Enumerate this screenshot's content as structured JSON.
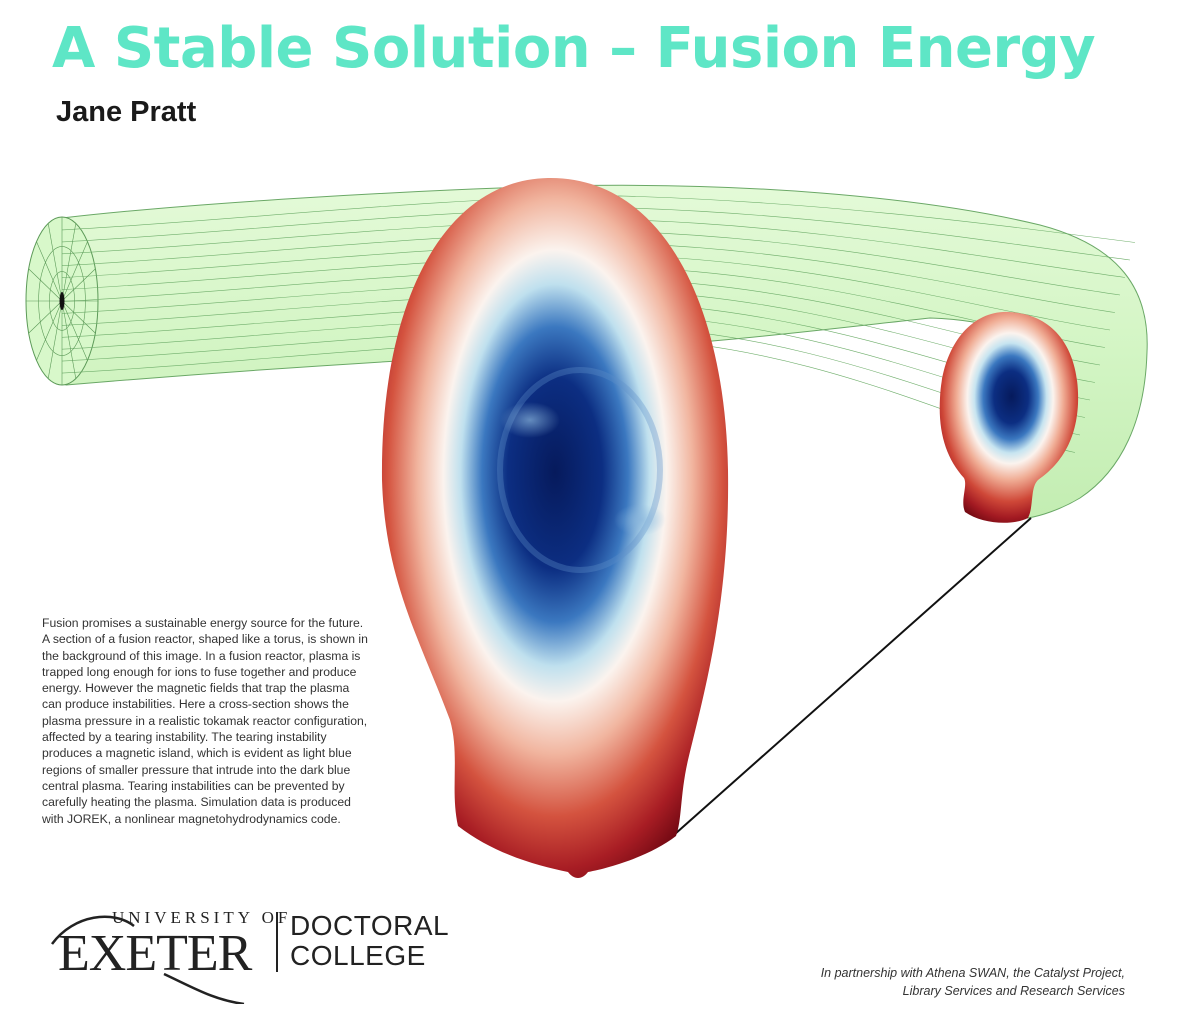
{
  "title": "A Stable Solution – Fusion Energy",
  "author": "Jane Pratt",
  "description": "Fusion promises a sustainable energy source for the future.  A section of a fusion reactor, shaped like a torus, is shown in the background of this image.  In a fusion reactor, plasma is trapped long enough for ions to fuse together and produce energy.  However the magnetic fields that trap the plasma can produce instabilities.  Here a cross-section shows the plasma pressure in a realistic tokamak reactor configuration, affected by a tearing instability.  The tearing instability produces a magnetic island, which is evident as light blue regions of smaller pressure that intrude into the dark blue central plasma.  Tearing instabilities can be prevented by carefully heating the plasma.  Simulation data is produced with JOREK, a nonlinear magnetohydrodynamics code.",
  "logo": {
    "university_line": "UNIVERSITY OF",
    "name": "EXETER",
    "college_line1": "DOCTORAL",
    "college_line2": "COLLEGE"
  },
  "partnership": {
    "line1": "In partnership with Athena SWAN, the Catalyst Project,",
    "line2": "Library Services and Research Services"
  },
  "colors": {
    "title": "#5ee6c6",
    "torus_fill": "#d6f7c8",
    "torus_mesh": "#7fbf7a",
    "plasma_edge": "#7a0a12",
    "plasma_core": "#0b2a78"
  }
}
